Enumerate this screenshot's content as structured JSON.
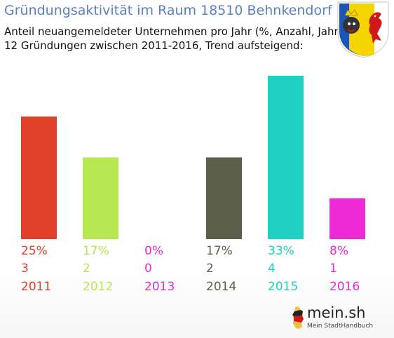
{
  "header": {
    "title": "Gründungsaktivität im Raum 18510 Behnkendorf",
    "subtitle_line1": "Anteil neuangemeldeter Unternehmen pro Jahr (%, Anzahl, Jahr)",
    "subtitle_line2": "12 Gründungen zwischen 2011-2016, Trend aufsteigend:"
  },
  "crest": {
    "icon": "coat-of-arms-icon",
    "colors": [
      "#1a56b8",
      "#f5d400",
      "#ffffff",
      "#d01818"
    ]
  },
  "logo": {
    "text": "mein.sh",
    "sub": "Mein StadtHandbuch",
    "icon": "germany-map-icon"
  },
  "chart_data": {
    "type": "bar",
    "categories": [
      "2011",
      "2012",
      "2013",
      "2014",
      "2015",
      "2016"
    ],
    "values": [
      3,
      2,
      0,
      2,
      4,
      1
    ],
    "percent_labels": [
      "25%",
      "17%",
      "0%",
      "17%",
      "33%",
      "8%"
    ],
    "count_labels": [
      "3",
      "2",
      "0",
      "2",
      "4",
      "1"
    ],
    "colors": [
      "#e04128",
      "#b5e851",
      "#ee2ad6",
      "#5c5f4a",
      "#1ed1c0",
      "#ee2ad6"
    ],
    "ylim": [
      0,
      4
    ],
    "grid": false,
    "title": "",
    "xlabel": "",
    "ylabel": ""
  }
}
